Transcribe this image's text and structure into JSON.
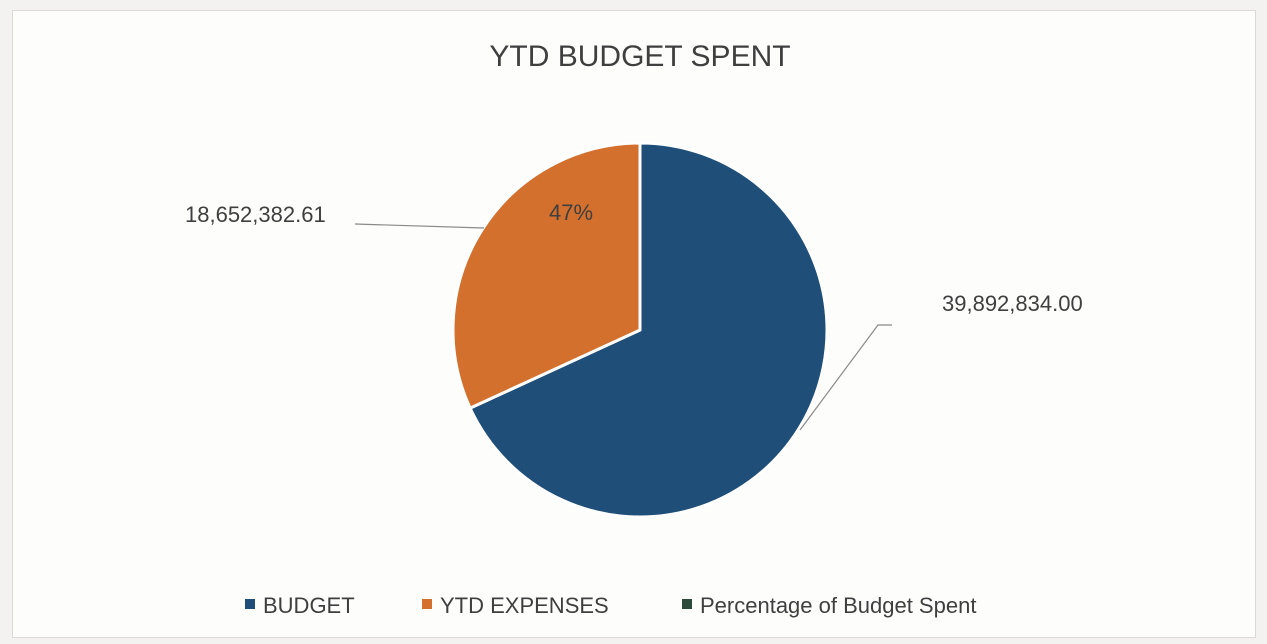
{
  "chart_data": {
    "type": "pie",
    "title": "YTD BUDGET SPENT",
    "slices": [
      {
        "name": "BUDGET",
        "value": 39892834.0,
        "label": "39,892,834.00",
        "color": "#1f4e79"
      },
      {
        "name": "YTD EXPENSES",
        "value": 18652382.61,
        "label": "18,652,382.61",
        "color": "#d4702d"
      },
      {
        "name": "Percentage of Budget Spent",
        "value": 0.47,
        "color": "#2d4a3a"
      }
    ],
    "inner_label": "47%",
    "legend": {
      "position": "bottom",
      "entries": [
        {
          "name": "BUDGET",
          "color": "#1f4e79"
        },
        {
          "name": "YTD EXPENSES",
          "color": "#d4702d"
        },
        {
          "name": "Percentage of Budget Spent",
          "color": "#2d4a3a"
        }
      ]
    }
  }
}
